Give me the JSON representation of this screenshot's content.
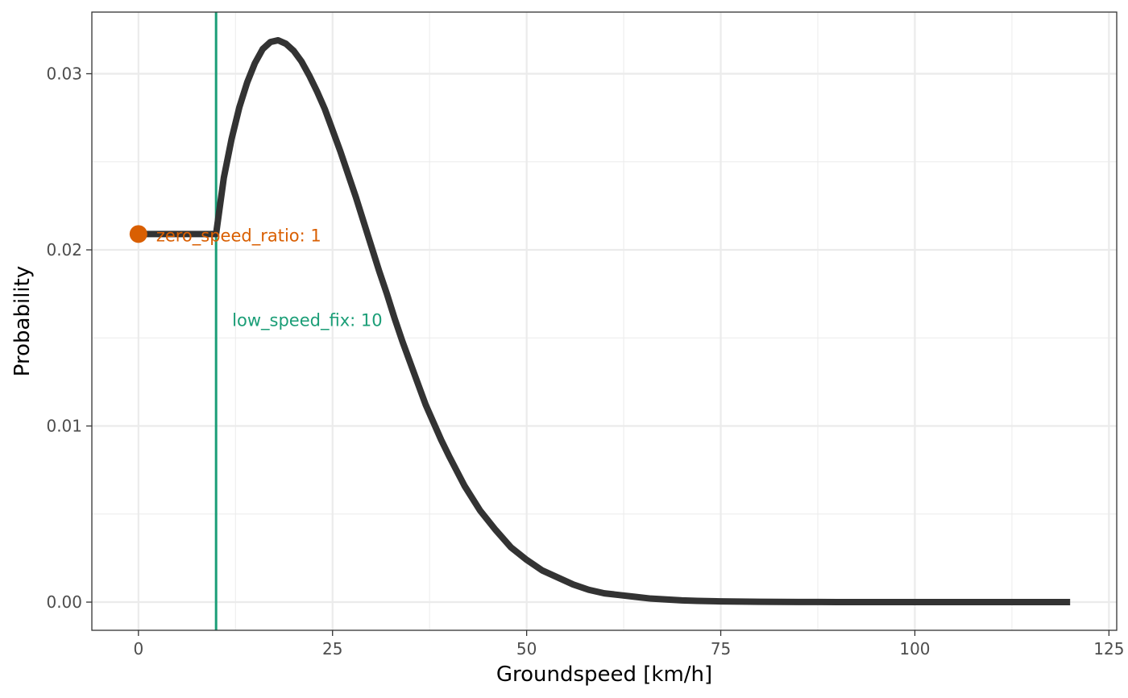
{
  "chart_data": {
    "type": "line",
    "title": "",
    "xlabel": "Groundspeed [km/h]",
    "ylabel": "Probability",
    "xlim": [
      -6,
      126
    ],
    "ylim": [
      -0.0016,
      0.0335
    ],
    "grid": true,
    "x_ticks": [
      {
        "value": 0,
        "label": "0"
      },
      {
        "value": 25,
        "label": "25"
      },
      {
        "value": 50,
        "label": "50"
      },
      {
        "value": 75,
        "label": "75"
      },
      {
        "value": 100,
        "label": "100"
      },
      {
        "value": 125,
        "label": "125"
      }
    ],
    "y_ticks": [
      {
        "value": 0,
        "label": "0.00"
      },
      {
        "value": 0.01,
        "label": "0.01"
      },
      {
        "value": 0.02,
        "label": "0.02"
      },
      {
        "value": 0.03,
        "label": "0.03"
      }
    ],
    "series": [
      {
        "color": "#333333",
        "x": [
          0,
          2,
          4,
          6,
          8,
          10,
          11,
          12,
          13,
          14,
          15,
          16,
          17,
          18,
          19,
          20,
          21,
          22,
          23,
          24,
          25,
          26,
          27,
          28,
          29,
          30,
          31,
          32,
          33,
          34,
          35,
          36,
          37,
          38,
          39,
          40,
          42,
          44,
          46,
          48,
          50,
          52,
          54,
          56,
          58,
          60,
          62,
          64,
          66,
          68,
          70,
          72,
          75,
          80,
          85,
          90,
          95,
          100,
          105,
          110,
          115,
          120
        ],
        "y": [
          0.0209,
          0.0209,
          0.0209,
          0.0209,
          0.0209,
          0.0209,
          0.0241,
          0.0263,
          0.0281,
          0.0295,
          0.0306,
          0.0314,
          0.0318,
          0.0319,
          0.0317,
          0.0313,
          0.0307,
          0.0299,
          0.029,
          0.028,
          0.0268,
          0.0256,
          0.0243,
          0.023,
          0.0216,
          0.0202,
          0.0188,
          0.0175,
          0.0161,
          0.0148,
          0.0136,
          0.0124,
          0.0112,
          0.0102,
          0.0092,
          0.0083,
          0.0066,
          0.0052,
          0.0041,
          0.0031,
          0.0024,
          0.0018,
          0.0014,
          0.001,
          0.0007,
          0.0005,
          0.0004,
          0.0003,
          0.0002,
          0.00015,
          0.0001,
          7e-05,
          4e-05,
          2e-05,
          1e-05,
          4e-06,
          2e-06,
          1e-06,
          0.0,
          0.0,
          0.0,
          0.0
        ]
      }
    ],
    "annotations": {
      "zero_speed": {
        "x": 0,
        "y": 0.0209,
        "label": "zero_speed_ratio: 1",
        "color": "#d95f02"
      },
      "low_speed": {
        "x": 10,
        "y": 0.016,
        "label": "low_speed_fix: 10",
        "color": "#1b9e77"
      }
    }
  }
}
